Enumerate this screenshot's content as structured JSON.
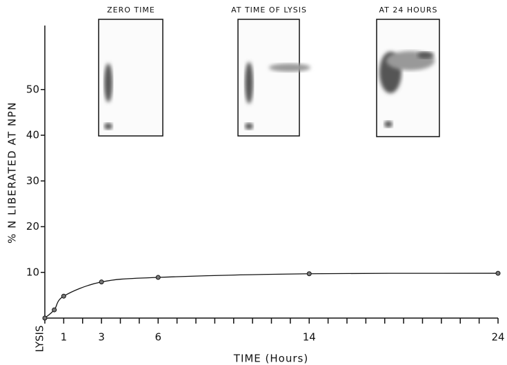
{
  "chart_data": {
    "type": "line",
    "xlabel": "TIME (Hours)",
    "ylabel": "% N LIBERATED AT NPN",
    "x": [
      0,
      0.5,
      1,
      3,
      6,
      14,
      24
    ],
    "values": [
      0,
      1.8,
      4.8,
      7.9,
      8.9,
      9.7,
      9.8
    ],
    "color": "#111111",
    "xlim": [
      0,
      24
    ],
    "ylim": [
      0,
      64
    ],
    "xticks": [
      {
        "value": 0,
        "label": "LYSIS"
      },
      1,
      3,
      6,
      14,
      24
    ],
    "xminorticks": [
      2,
      4,
      5,
      7,
      8,
      9,
      10,
      11,
      12,
      13,
      15,
      16,
      17,
      18,
      19,
      20,
      21,
      22,
      23
    ],
    "yticks": [
      10,
      20,
      30,
      40,
      50
    ],
    "insets": [
      {
        "title": "ZERO TIME"
      },
      {
        "title": "AT TIME OF LYSIS"
      },
      {
        "title": "AT 24 HOURS"
      }
    ]
  }
}
